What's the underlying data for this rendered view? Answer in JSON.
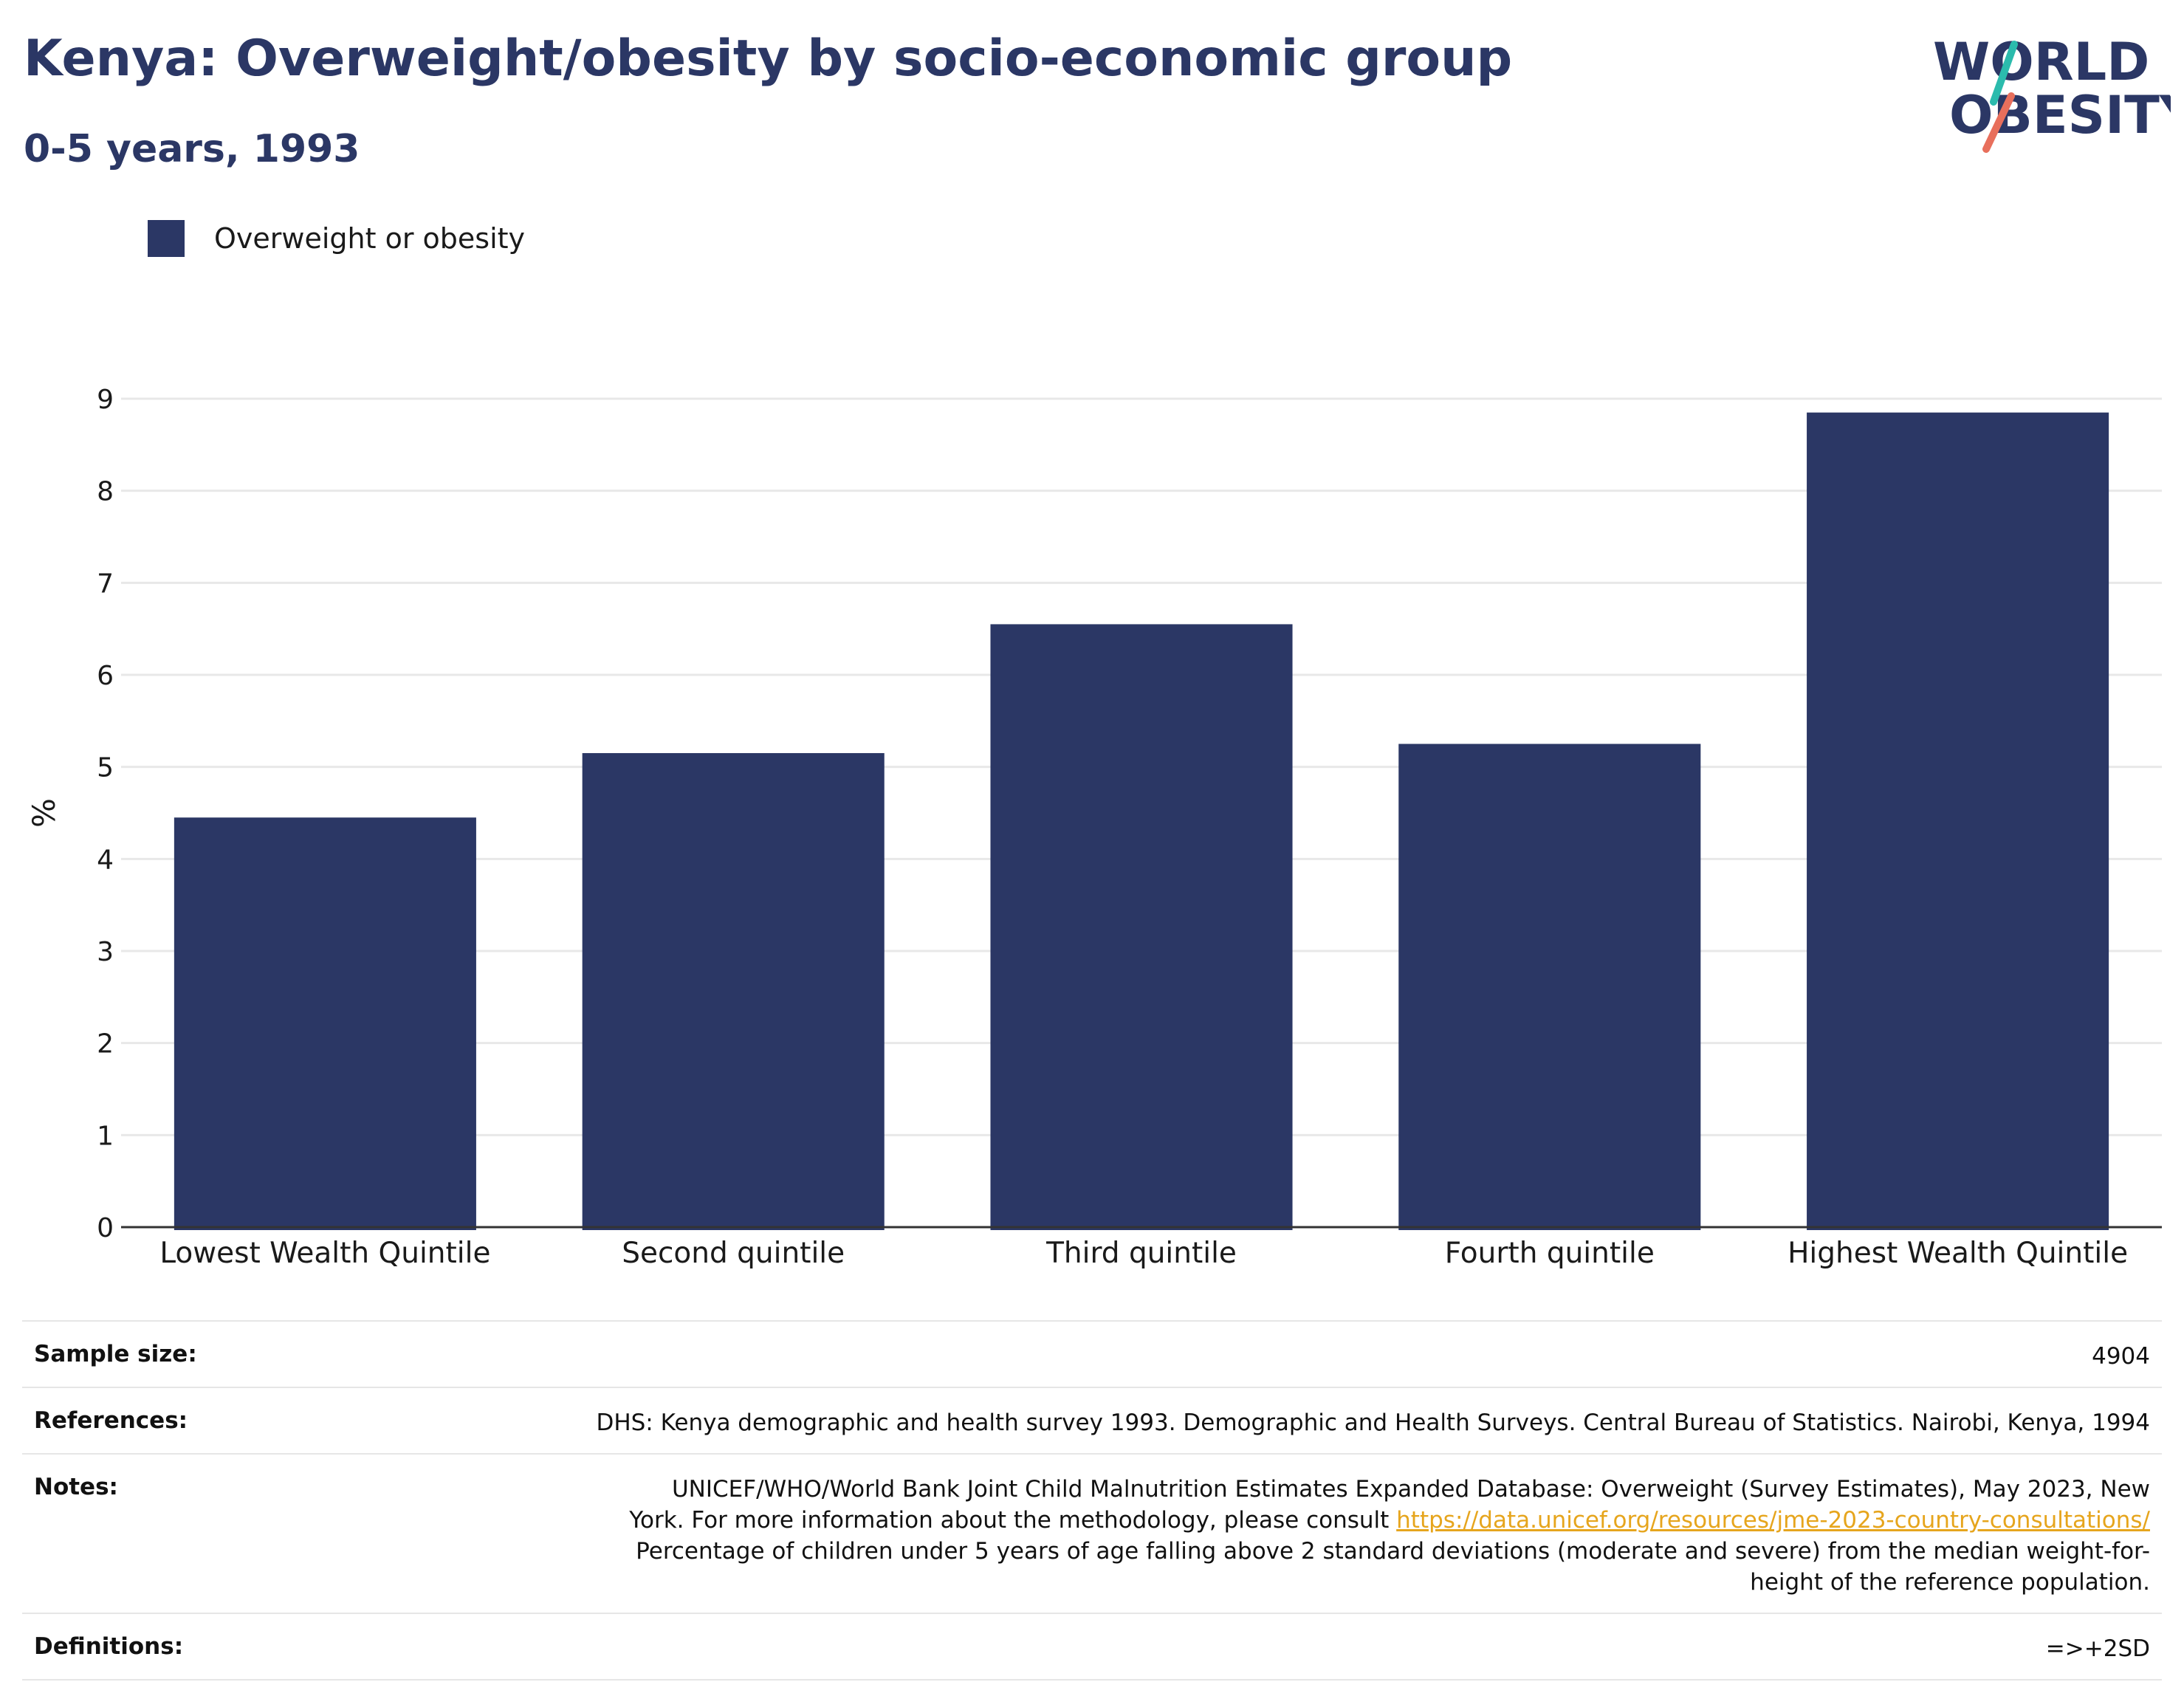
{
  "header": {
    "title": "Kenya: Overweight/obesity by socio-economic group",
    "subtitle": "0-5 years, 1993"
  },
  "logo": {
    "line1": "WORLD",
    "line2": "OBESITY",
    "colors": {
      "navy": "#2b3765",
      "teal": "#2bbbad",
      "coral": "#e86f5c"
    }
  },
  "legend": {
    "items": [
      {
        "label": "Overweight or obesity",
        "color": "#2b3765"
      }
    ]
  },
  "chart_data": {
    "type": "bar",
    "categories": [
      "Lowest Wealth Quintile",
      "Second quintile",
      "Third quintile",
      "Fourth quintile",
      "Highest Wealth Quintile"
    ],
    "series": [
      {
        "name": "Overweight or obesity",
        "values": [
          4.45,
          5.15,
          6.55,
          5.25,
          8.85
        ],
        "color": "#2b3765"
      }
    ],
    "ylabel": "%",
    "ylim": [
      0,
      9
    ],
    "yticks": [
      0,
      1,
      2,
      3,
      4,
      5,
      6,
      7,
      8,
      9
    ],
    "grid": true,
    "legend_position": "top-left"
  },
  "table": {
    "sample_size": {
      "label": "Sample size:",
      "value": "4904"
    },
    "references": {
      "label": "References:",
      "value": "DHS: Kenya demographic and health survey 1993. Demographic and Health Surveys. Central Bureau of Statistics. Nairobi, Kenya, 1994"
    },
    "notes": {
      "label": "Notes:",
      "line1": "UNICEF/WHO/World Bank Joint Child Malnutrition Estimates Expanded Database: Overweight (Survey Estimates), May 2023, New",
      "line2_prefix": "York. For more information about the methodology, please consult ",
      "link": "https://data.unicef.org/resources/jme-2023-country-consultations/",
      "line3": "Percentage of children under 5 years of age falling above 2 standard deviations (moderate and severe) from the median weight-for-",
      "line4": "height of the reference population."
    },
    "definitions": {
      "label": "Definitions:",
      "value": "=>+2SD"
    }
  }
}
